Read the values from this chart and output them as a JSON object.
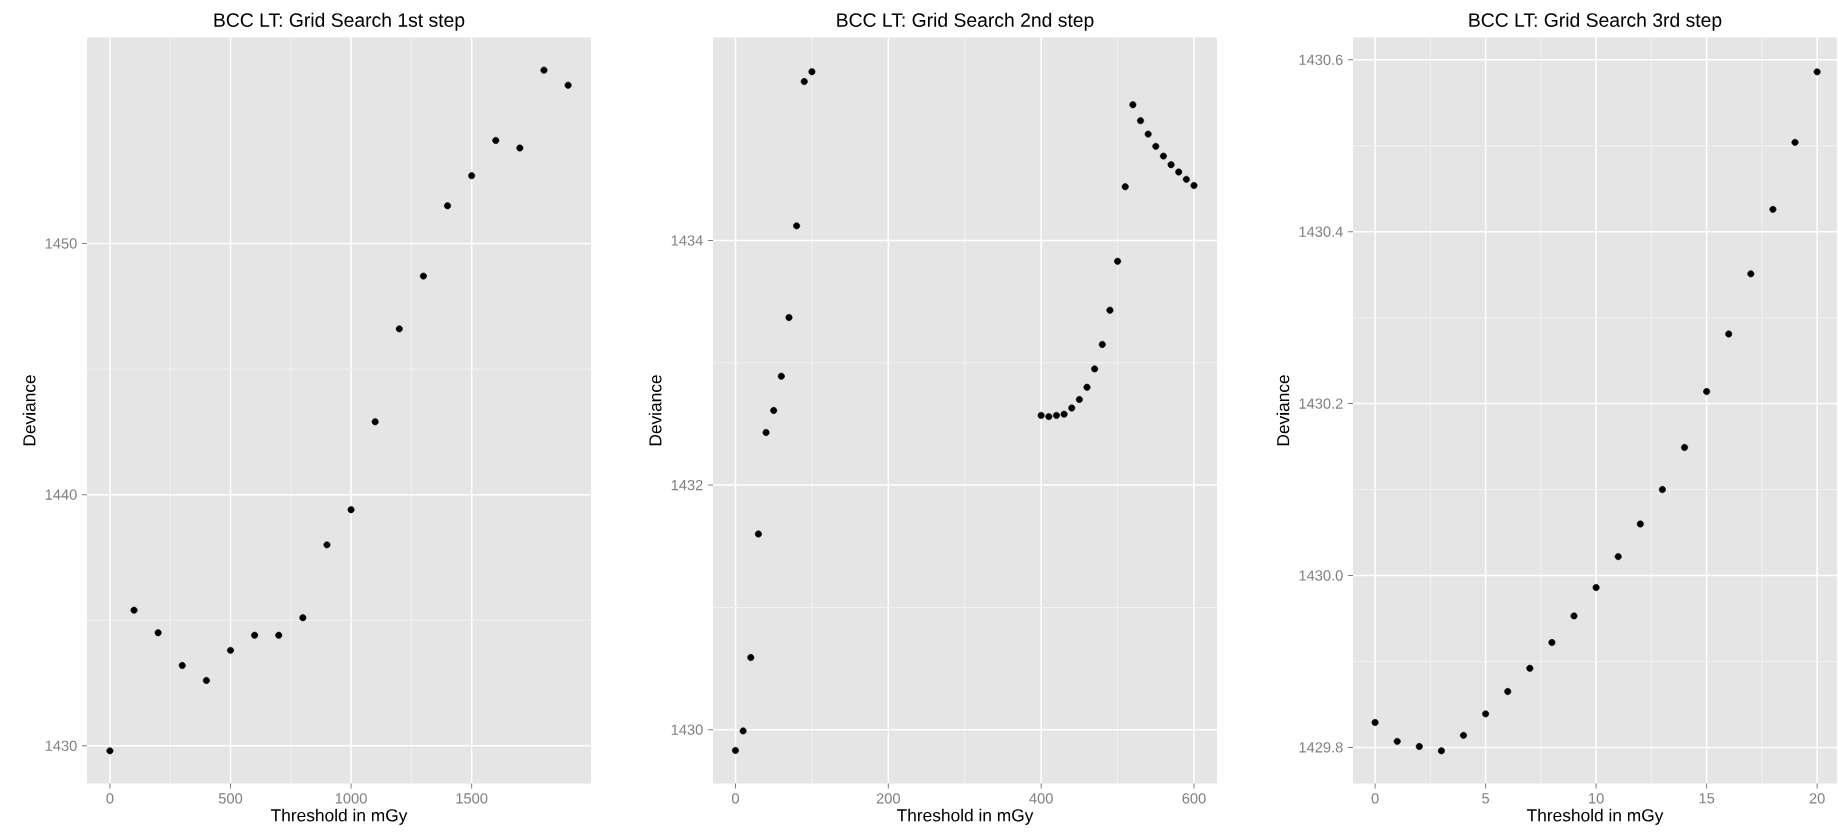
{
  "chart_data": [
    {
      "type": "scatter",
      "title": "BCC LT: Grid Search 1st step",
      "xlabel": "Threshold in mGy",
      "ylabel": "Deviance",
      "color": "#000000",
      "marker": "circle",
      "grid": true,
      "x": [
        0,
        100,
        200,
        300,
        400,
        500,
        600,
        700,
        800,
        900,
        1000,
        1100,
        1200,
        1300,
        1400,
        1500,
        1600,
        1700,
        1800,
        1900
      ],
      "values": [
        1429.8,
        1435.4,
        1434.5,
        1433.2,
        1432.6,
        1433.8,
        1434.4,
        1434.4,
        1435.1,
        1438.0,
        1439.4,
        1442.9,
        1446.6,
        1448.7,
        1451.5,
        1452.7,
        1454.1,
        1453.8,
        1456.9,
        1456.3
      ],
      "xlim": [
        -95,
        1995
      ],
      "ylim": [
        1428.5,
        1458.2
      ],
      "xticks": [
        0,
        500,
        1000,
        1500
      ],
      "yticks": [
        1430,
        1440,
        1450
      ]
    },
    {
      "type": "scatter",
      "title": "BCC LT: Grid Search 2nd step",
      "xlabel": "Threshold in mGy",
      "ylabel": "Deviance",
      "color": "#000000",
      "marker": "circle",
      "grid": true,
      "x": [
        0,
        10,
        20,
        30,
        40,
        50,
        60,
        70,
        80,
        90,
        100,
        400,
        410,
        420,
        430,
        440,
        450,
        460,
        470,
        480,
        490,
        500,
        510,
        520,
        530,
        540,
        550,
        560,
        570,
        580,
        590,
        600
      ],
      "values": [
        1429.83,
        1429.99,
        1430.59,
        1431.6,
        1432.43,
        1432.61,
        1432.89,
        1433.37,
        1434.12,
        1435.3,
        1435.38,
        1432.57,
        1432.56,
        1432.57,
        1432.58,
        1432.63,
        1432.7,
        1432.8,
        1432.95,
        1433.15,
        1433.43,
        1433.83,
        1434.44,
        1435.11,
        1434.98,
        1434.87,
        1434.77,
        1434.69,
        1434.62,
        1434.56,
        1434.5,
        1434.45
      ],
      "xlim": [
        -29.4,
        630.1
      ],
      "ylim": [
        1429.56,
        1435.66
      ],
      "xticks": [
        0,
        200,
        400,
        600
      ],
      "yticks": [
        1430,
        1432,
        1434
      ]
    },
    {
      "type": "scatter",
      "title": "BCC LT: Grid Search 3rd step",
      "xlabel": "Threshold in mGy",
      "ylabel": "Deviance",
      "color": "#000000",
      "marker": "circle",
      "grid": true,
      "x": [
        0,
        1,
        2,
        3,
        4,
        5,
        6,
        7,
        8,
        9,
        10,
        11,
        12,
        13,
        14,
        15,
        16,
        17,
        18,
        19,
        20
      ],
      "values": [
        1429.829,
        1429.807,
        1429.801,
        1429.796,
        1429.814,
        1429.839,
        1429.865,
        1429.892,
        1429.922,
        1429.953,
        1429.986,
        1430.022,
        1430.06,
        1430.1,
        1430.149,
        1430.214,
        1430.281,
        1430.351,
        1430.426,
        1430.504,
        1430.586
      ],
      "xlim": [
        -1,
        20.9
      ],
      "ylim": [
        1429.758,
        1430.626
      ],
      "xticks": [
        0,
        5,
        10,
        15,
        20
      ],
      "yticks": [
        1429.8,
        {
          "value": 1430,
          "label": "1430.0"
        },
        1430.2,
        1430.4,
        1430.6
      ]
    }
  ]
}
